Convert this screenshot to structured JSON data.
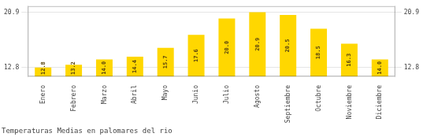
{
  "chart_data": {
    "type": "bar",
    "title": "Temperaturas Medias en palomares del rio",
    "categories": [
      "Enero",
      "Febrero",
      "Marzo",
      "Abril",
      "Mayo",
      "Junio",
      "Julio",
      "Agosto",
      "Septiembre",
      "Octubre",
      "Noviembre",
      "Diciembre"
    ],
    "values": [
      12.8,
      13.2,
      14.0,
      14.4,
      15.7,
      17.6,
      20.0,
      20.9,
      20.5,
      18.5,
      16.3,
      14.0
    ],
    "value_labels": [
      "12.8",
      "13.2",
      "14.0",
      "14.4",
      "15.7",
      "17.6",
      "20.0",
      "20.9",
      "20.5",
      "18.5",
      "16.3",
      "14.0"
    ],
    "color": "#FFD700",
    "ylim": [
      11.5,
      21.8
    ],
    "yticks": [
      12.8,
      20.9
    ],
    "y2lim": [
      11.5,
      21.8
    ],
    "y2ticks": [
      12.8,
      20.9
    ],
    "grid": true,
    "data_labels": true
  }
}
